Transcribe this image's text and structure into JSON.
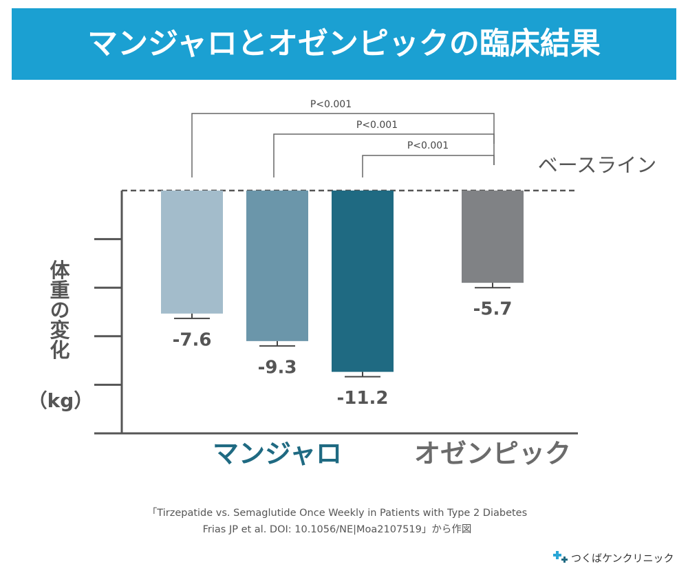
{
  "chart_data": {
    "type": "bar",
    "title": "マンジャロとオゼンピックの臨床結果",
    "ylabel": "体重の変化",
    "ylabel_unit": "（kg）",
    "baseline_label": "ベースライン",
    "series": [
      {
        "name": "マンジャロ",
        "color": "#1f6a82",
        "bar_colors": [
          "#a3bccb",
          "#6b96aa",
          "#1f6a82"
        ],
        "values": [
          -7.6,
          -9.3,
          -11.2
        ],
        "errors": [
          0.3,
          0.3,
          0.3
        ]
      },
      {
        "name": "オゼンピック",
        "color": "#6b6b6b",
        "bar_colors": [
          "#808285"
        ],
        "values": [
          -5.7
        ],
        "errors": [
          0.3
        ]
      }
    ],
    "annotations": [
      "P<0.001",
      "P<0.001",
      "P<0.001"
    ],
    "ylim": [
      -15,
      0
    ],
    "yticks": [
      -3,
      -6,
      -9,
      -12
    ],
    "source": [
      "「Tirzepatide vs. Semaglutide Once Weekly in Patients with Type 2 Diabetes",
      "Frias JP et al. DOI: 10.1056/NE|Moa2107519」から作図"
    ],
    "logo": "つくばケンクリニック"
  }
}
